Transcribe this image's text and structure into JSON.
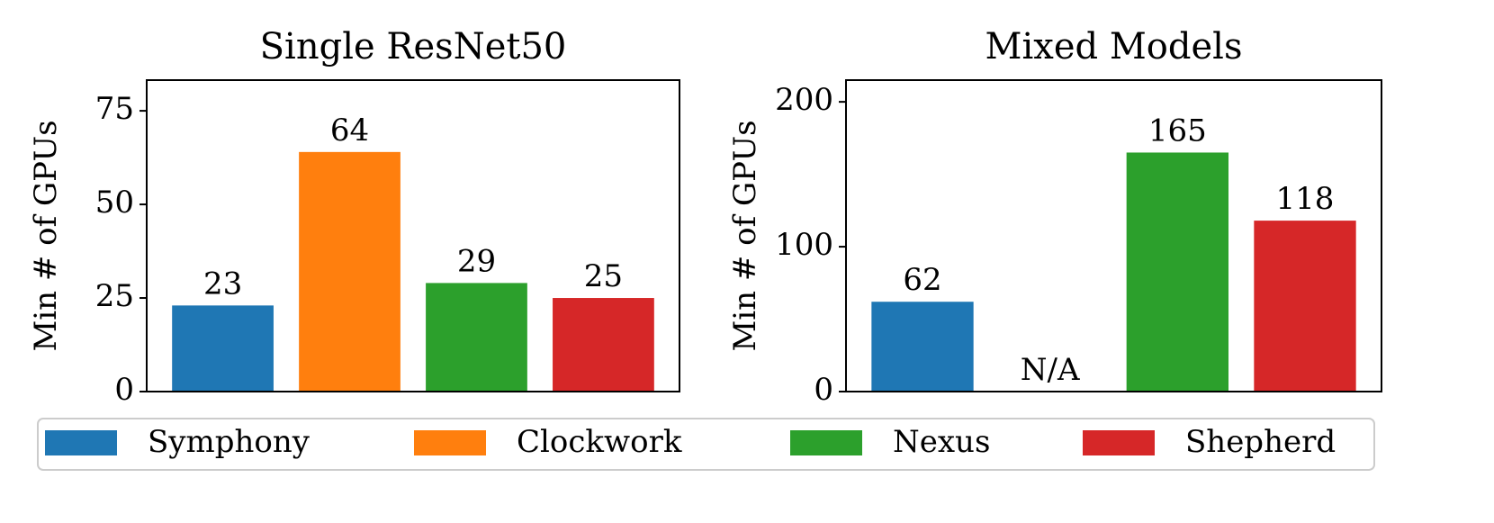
{
  "chart_data": [
    {
      "type": "bar",
      "title": "Single ResNet50",
      "ylabel": "Min # of GPUs",
      "series": [
        {
          "name": "Symphony",
          "color": "#1f77b4",
          "values": [
            23
          ]
        },
        {
          "name": "Clockwork",
          "color": "#ff7f0e",
          "values": [
            64
          ]
        },
        {
          "name": "Nexus",
          "color": "#2ca02c",
          "values": [
            29
          ]
        },
        {
          "name": "Shepherd",
          "color": "#d62728",
          "values": [
            25
          ]
        }
      ],
      "ylim": [
        0,
        83.2
      ],
      "yticks": [
        0,
        25,
        50,
        75
      ],
      "legend": "lower center"
    },
    {
      "type": "bar",
      "title": "Mixed Models",
      "ylabel": "Min # of GPUs",
      "series": [
        {
          "color": "#1f77b4",
          "values": [
            62
          ]
        },
        {
          "color": "#ff7f0e",
          "values": [
            null
          ],
          "value_labels": [
            "N/A"
          ]
        },
        {
          "color": "#2ca02c",
          "values": [
            165
          ]
        },
        {
          "color": "#d62728",
          "values": [
            118
          ]
        }
      ],
      "ylim": [
        0,
        215
      ],
      "yticks": [
        0,
        100,
        200
      ]
    }
  ]
}
